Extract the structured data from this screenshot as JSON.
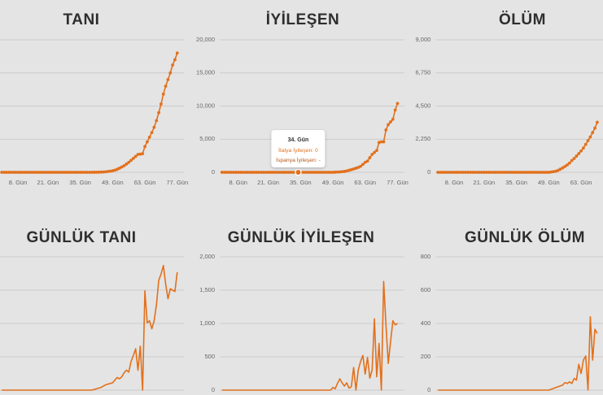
{
  "chart_data": [
    {
      "type": "line",
      "title": "TANI",
      "color": "#e2701c",
      "markers": true,
      "x": [
        1,
        2,
        3,
        4,
        5,
        6,
        7,
        8,
        9,
        10,
        11,
        12,
        13,
        14,
        15,
        16,
        17,
        18,
        19,
        20,
        21,
        22,
        23,
        24,
        25,
        26,
        27,
        28,
        29,
        30,
        31,
        32,
        33,
        34,
        35,
        36,
        37,
        38,
        39,
        40,
        41,
        42,
        43,
        44,
        45,
        46,
        47,
        48,
        49,
        50,
        51,
        52,
        53,
        54,
        55,
        56,
        57,
        58,
        59,
        60,
        61,
        62,
        63,
        64,
        65,
        66,
        67,
        68,
        69,
        70,
        71,
        72,
        73,
        74,
        75,
        76,
        77
      ],
      "values": [
        0,
        0,
        0,
        0,
        0,
        0,
        0,
        0,
        0,
        0,
        0,
        0,
        0,
        0,
        0,
        0,
        0,
        0,
        0,
        0,
        0,
        0,
        0,
        0,
        0,
        0,
        0,
        0,
        0,
        0,
        0,
        0,
        0,
        0,
        0,
        0,
        0,
        0,
        0,
        0,
        5,
        10,
        20,
        30,
        50,
        80,
        120,
        170,
        230,
        320,
        450,
        620,
        800,
        1000,
        1250,
        1500,
        1800,
        2100,
        2400,
        2700,
        2750,
        2800,
        3900,
        4600,
        5300,
        6000,
        6800,
        7800,
        9000,
        10300,
        11800,
        13000,
        14000,
        15000,
        16200,
        17000,
        18000
      ],
      "xlim": [
        0,
        80
      ],
      "ylim": [
        0,
        20000
      ],
      "yticks": [
        0,
        5000,
        10000,
        15000,
        20000
      ],
      "xticks": [
        {
          "value": 8,
          "label": "8. Gün"
        },
        {
          "value": 21,
          "label": "21. Gün"
        },
        {
          "value": 35,
          "label": "35. Gün"
        },
        {
          "value": 49,
          "label": "49. Gün"
        },
        {
          "value": 63,
          "label": "63. Gün"
        },
        {
          "value": 77,
          "label": "77. Gün"
        }
      ]
    },
    {
      "type": "line",
      "title": "İYİLEŞEN",
      "color": "#e2701c",
      "markers": true,
      "x": [
        1,
        2,
        3,
        4,
        5,
        6,
        7,
        8,
        9,
        10,
        11,
        12,
        13,
        14,
        15,
        16,
        17,
        18,
        19,
        20,
        21,
        22,
        23,
        24,
        25,
        26,
        27,
        28,
        29,
        30,
        31,
        32,
        33,
        34,
        35,
        36,
        37,
        38,
        39,
        40,
        41,
        42,
        43,
        44,
        45,
        46,
        47,
        48,
        49,
        50,
        51,
        52,
        53,
        54,
        55,
        56,
        57,
        58,
        59,
        60,
        61,
        62,
        63,
        64,
        65,
        66,
        67,
        68,
        69,
        70,
        71,
        72,
        73,
        74,
        75,
        76,
        77
      ],
      "values": [
        0,
        0,
        0,
        0,
        0,
        0,
        0,
        0,
        0,
        0,
        0,
        0,
        0,
        0,
        0,
        0,
        0,
        0,
        0,
        0,
        0,
        0,
        0,
        0,
        0,
        0,
        0,
        0,
        0,
        0,
        0,
        0,
        0,
        0,
        0,
        0,
        0,
        0,
        0,
        0,
        0,
        0,
        0,
        0,
        0,
        0,
        0,
        0,
        0,
        20,
        40,
        60,
        90,
        130,
        200,
        300,
        400,
        500,
        620,
        740,
        900,
        1200,
        1500,
        1700,
        2200,
        2700,
        3000,
        3300,
        4500,
        4600,
        4600,
        6400,
        7200,
        7600,
        8000,
        9400,
        10400
      ],
      "xlim": [
        0,
        80
      ],
      "ylim": [
        0,
        20000
      ],
      "yticks": [
        0,
        {
          "value": 5000,
          "label": "5,000"
        },
        {
          "value": 10000,
          "label": "10,000"
        },
        {
          "value": 15000,
          "label": "15,000"
        },
        {
          "value": 20000,
          "label": "20,000"
        }
      ],
      "xticks": [
        {
          "value": 8,
          "label": "8. Gün"
        },
        {
          "value": 21,
          "label": "21. Gün"
        },
        {
          "value": 35,
          "label": "35. Gün"
        },
        {
          "value": 49,
          "label": "49. Gün"
        },
        {
          "value": 63,
          "label": "63. Gün"
        },
        {
          "value": 77,
          "label": "77. Gün"
        }
      ],
      "tooltip": {
        "x": 34,
        "title": "34. Gün",
        "lines": [
          "İtalya İyileşen: 0",
          "İspanya İyileşen: -"
        ]
      }
    },
    {
      "type": "line",
      "title": "ÖLÜM",
      "color": "#e2701c",
      "markers": true,
      "x": [
        1,
        2,
        3,
        4,
        5,
        6,
        7,
        8,
        9,
        10,
        11,
        12,
        13,
        14,
        15,
        16,
        17,
        18,
        19,
        20,
        21,
        22,
        23,
        24,
        25,
        26,
        27,
        28,
        29,
        30,
        31,
        32,
        33,
        34,
        35,
        36,
        37,
        38,
        39,
        40,
        41,
        42,
        43,
        44,
        45,
        46,
        47,
        48,
        49,
        50,
        51,
        52,
        53,
        54,
        55,
        56,
        57,
        58,
        59,
        60,
        61,
        62,
        63,
        64,
        65,
        66,
        67,
        68,
        69,
        70
      ],
      "values": [
        0,
        0,
        0,
        0,
        0,
        0,
        0,
        0,
        0,
        0,
        0,
        0,
        0,
        0,
        0,
        0,
        0,
        0,
        0,
        0,
        0,
        0,
        0,
        0,
        0,
        0,
        0,
        0,
        0,
        0,
        0,
        0,
        0,
        0,
        0,
        0,
        0,
        0,
        0,
        0,
        0,
        0,
        0,
        0,
        0,
        0,
        0,
        0,
        0,
        20,
        40,
        70,
        130,
        210,
        300,
        390,
        500,
        630,
        800,
        940,
        1100,
        1270,
        1450,
        1650,
        1900,
        2150,
        2400,
        2700,
        3000,
        3400
      ],
      "xlim": [
        0,
        80
      ],
      "ylim": [
        0,
        9000
      ],
      "yticks": [
        0,
        {
          "value": 2250,
          "label": "2,250"
        },
        {
          "value": 4500,
          "label": "4,500"
        },
        {
          "value": 6750,
          "label": "6,750"
        },
        {
          "value": 9000,
          "label": "9,000"
        }
      ],
      "xticks": [
        {
          "value": 8,
          "label": "8. Gün"
        },
        {
          "value": 21,
          "label": "21. Gün"
        },
        {
          "value": 35,
          "label": "35. Gün"
        },
        {
          "value": 49,
          "label": "49. Gün"
        },
        {
          "value": 63,
          "label": "63. Gün"
        }
      ]
    },
    {
      "type": "line",
      "title": "GÜNLÜK TANI",
      "color": "#e2701c",
      "markers": false,
      "x": [
        1,
        2,
        3,
        4,
        5,
        6,
        7,
        8,
        9,
        10,
        11,
        12,
        13,
        14,
        15,
        16,
        17,
        18,
        19,
        20,
        21,
        22,
        23,
        24,
        25,
        26,
        27,
        28,
        29,
        30,
        31,
        32,
        33,
        34,
        35,
        36,
        37,
        38,
        39,
        40,
        41,
        42,
        43,
        44,
        45,
        46,
        47,
        48,
        49,
        50,
        51,
        52,
        53,
        54,
        55,
        56,
        57,
        58,
        59,
        60,
        61,
        62,
        63,
        64,
        65,
        66,
        67,
        68,
        69,
        70,
        71,
        72,
        73,
        74,
        75,
        76,
        77
      ],
      "values": [
        0,
        0,
        0,
        0,
        0,
        0,
        0,
        0,
        0,
        0,
        0,
        0,
        0,
        0,
        0,
        0,
        0,
        0,
        0,
        0,
        0,
        0,
        0,
        0,
        0,
        0,
        0,
        0,
        0,
        0,
        0,
        0,
        0,
        0,
        0,
        0,
        0,
        0,
        0,
        0,
        10,
        20,
        30,
        40,
        60,
        80,
        90,
        100,
        110,
        150,
        190,
        170,
        200,
        260,
        300,
        270,
        430,
        520,
        620,
        300,
        660,
        0,
        1490,
        1010,
        1040,
        920,
        1040,
        1280,
        1650,
        1740,
        1870,
        1590,
        1370,
        1520,
        1500,
        1480,
        1770
      ],
      "xlim": [
        0,
        80
      ],
      "ylim": [
        0,
        2000
      ],
      "yticks": [
        0,
        500,
        1000,
        1500,
        2000
      ]
    },
    {
      "type": "line",
      "title": "GÜNLÜK İYİLEŞEN",
      "color": "#e2701c",
      "markers": false,
      "x": [
        1,
        2,
        3,
        4,
        5,
        6,
        7,
        8,
        9,
        10,
        11,
        12,
        13,
        14,
        15,
        16,
        17,
        18,
        19,
        20,
        21,
        22,
        23,
        24,
        25,
        26,
        27,
        28,
        29,
        30,
        31,
        32,
        33,
        34,
        35,
        36,
        37,
        38,
        39,
        40,
        41,
        42,
        43,
        44,
        45,
        46,
        47,
        48,
        49,
        50,
        51,
        52,
        53,
        54,
        55,
        56,
        57,
        58,
        59,
        60,
        61,
        62,
        63,
        64,
        65,
        66,
        67,
        68,
        69,
        70,
        71,
        72,
        73,
        74,
        75,
        76,
        77
      ],
      "values": [
        0,
        0,
        0,
        0,
        0,
        0,
        0,
        0,
        0,
        0,
        0,
        0,
        0,
        0,
        0,
        0,
        0,
        0,
        0,
        0,
        0,
        0,
        0,
        0,
        0,
        0,
        0,
        0,
        0,
        0,
        0,
        0,
        0,
        0,
        0,
        0,
        0,
        0,
        0,
        0,
        0,
        0,
        0,
        0,
        0,
        0,
        0,
        0,
        40,
        20,
        100,
        170,
        110,
        60,
        110,
        30,
        50,
        340,
        0,
        300,
        430,
        520,
        240,
        490,
        180,
        300,
        1070,
        200,
        700,
        0,
        1630,
        980,
        400,
        730,
        1040,
        980,
        1000
      ],
      "xlim": [
        0,
        80
      ],
      "ylim": [
        0,
        2000
      ],
      "yticks": [
        0,
        500,
        {
          "value": 1000,
          "label": "1,000"
        },
        {
          "value": 1500,
          "label": "1,500"
        },
        {
          "value": 2000,
          "label": "2,000"
        }
      ]
    },
    {
      "type": "line",
      "title": "GÜNLÜK ÖLÜM",
      "color": "#e2701c",
      "markers": false,
      "x": [
        1,
        2,
        3,
        4,
        5,
        6,
        7,
        8,
        9,
        10,
        11,
        12,
        13,
        14,
        15,
        16,
        17,
        18,
        19,
        20,
        21,
        22,
        23,
        24,
        25,
        26,
        27,
        28,
        29,
        30,
        31,
        32,
        33,
        34,
        35,
        36,
        37,
        38,
        39,
        40,
        41,
        42,
        43,
        44,
        45,
        46,
        47,
        48,
        49,
        50,
        51,
        52,
        53,
        54,
        55,
        56,
        57,
        58,
        59,
        60,
        61,
        62,
        63,
        64,
        65,
        66,
        67,
        68,
        69,
        70
      ],
      "values": [
        0,
        0,
        0,
        0,
        0,
        0,
        0,
        0,
        0,
        0,
        0,
        0,
        0,
        0,
        0,
        0,
        0,
        0,
        0,
        0,
        0,
        0,
        0,
        0,
        0,
        0,
        0,
        0,
        0,
        0,
        0,
        0,
        0,
        0,
        0,
        0,
        0,
        0,
        0,
        0,
        0,
        0,
        0,
        0,
        0,
        0,
        0,
        0,
        0,
        5,
        10,
        15,
        20,
        25,
        30,
        45,
        40,
        50,
        40,
        70,
        60,
        155,
        100,
        180,
        205,
        0,
        440,
        180,
        365,
        340
      ],
      "xlim": [
        0,
        80
      ],
      "ylim": [
        0,
        800
      ],
      "yticks": [
        0,
        200,
        400,
        600,
        800
      ]
    }
  ]
}
